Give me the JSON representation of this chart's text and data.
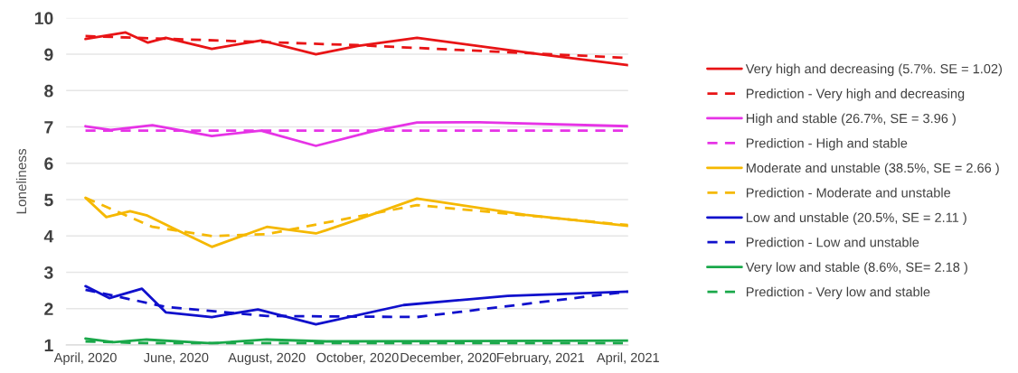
{
  "chart_data": {
    "type": "line",
    "ylabel": "Loneliness",
    "xlim": [
      "2020-03-19",
      "2021-04-01"
    ],
    "ylim": [
      1,
      10
    ],
    "yticks": [
      1,
      2,
      3,
      4,
      5,
      6,
      7,
      8,
      9,
      10
    ],
    "xticks": [
      {
        "value": "2020-04-01",
        "label": "April, 2020"
      },
      {
        "value": "2020-06-01",
        "label": "June, 2020"
      },
      {
        "value": "2020-08-01",
        "label": "August, 2020"
      },
      {
        "value": "2020-10-01",
        "label": "October, 2020"
      },
      {
        "value": "2020-12-01",
        "label": "December, 2020"
      },
      {
        "value": "2021-02-01",
        "label": "February, 2021"
      },
      {
        "value": "2021-04-01",
        "label": "April, 2021"
      }
    ],
    "grid": "y",
    "legend": "right",
    "line_style": "solid",
    "marker": "none",
    "series": [
      {
        "name": "Very high and decreasing (5.7%. SE = 1.02)",
        "color": "#e81416",
        "x": [
          "2020-04-01",
          "2020-04-28",
          "2020-05-13",
          "2020-05-25",
          "2020-06-25",
          "2020-07-28",
          "2020-09-03",
          "2020-10-01",
          "2020-11-10",
          "2021-02-01",
          "2021-04-01"
        ],
        "values": [
          9.42,
          9.6,
          9.32,
          9.45,
          9.15,
          9.38,
          9.0,
          9.23,
          9.45,
          9.0,
          8.7
        ]
      },
      {
        "name": "Prediction - Very high and decreasing",
        "color": "#e81416",
        "line_style": "dashed",
        "x": [
          "2020-04-01",
          "2020-10-01",
          "2021-04-01"
        ],
        "values": [
          9.5,
          9.25,
          8.9
        ]
      },
      {
        "name": "High and stable (26.7%, SE = 3.96 )",
        "color": "#e633e6",
        "x": [
          "2020-04-01",
          "2020-04-18",
          "2020-05-16",
          "2020-06-25",
          "2020-07-28",
          "2020-09-03",
          "2020-10-13",
          "2020-11-10",
          "2020-12-22",
          "2021-04-01"
        ],
        "values": [
          7.02,
          6.92,
          7.05,
          6.75,
          6.9,
          6.48,
          6.9,
          7.12,
          7.13,
          7.02
        ]
      },
      {
        "name": "Prediction - High and stable",
        "color": "#e633e6",
        "line_style": "dashed",
        "x": [
          "2020-04-01",
          "2021-04-01"
        ],
        "values": [
          6.9,
          6.9
        ]
      },
      {
        "name": "Moderate and unstable (38.5%, SE = 2.66 )",
        "color": "#f5b800",
        "x": [
          "2020-04-01",
          "2020-04-15",
          "2020-05-01",
          "2020-05-12",
          "2020-06-25",
          "2020-08-01",
          "2020-09-03",
          "2020-09-10",
          "2020-10-01",
          "2020-11-10",
          "2021-01-22",
          "2021-04-01"
        ],
        "values": [
          5.05,
          4.52,
          4.68,
          4.57,
          3.7,
          4.25,
          4.07,
          4.16,
          4.45,
          5.03,
          4.58,
          4.28
        ]
      },
      {
        "name": "Prediction - Moderate and unstable",
        "color": "#f5b800",
        "line_style": "dashed",
        "x": [
          "2020-04-01",
          "2020-05-16",
          "2020-06-25",
          "2020-08-01",
          "2020-09-10",
          "2020-11-10",
          "2021-04-01"
        ],
        "values": [
          5.05,
          4.25,
          4.0,
          4.05,
          4.37,
          4.85,
          4.3
        ]
      },
      {
        "name": "Low and unstable (20.5%, SE = 2.11 )",
        "color": "#1010cc",
        "x": [
          "2020-04-01",
          "2020-04-17",
          "2020-05-09",
          "2020-05-25",
          "2020-06-25",
          "2020-07-26",
          "2020-09-03",
          "2020-11-01",
          "2021-01-10",
          "2021-04-01"
        ],
        "values": [
          2.62,
          2.29,
          2.55,
          1.9,
          1.77,
          1.98,
          1.57,
          2.1,
          2.35,
          2.47
        ]
      },
      {
        "name": "Prediction - Low and unstable",
        "color": "#1010cc",
        "line_style": "dashed",
        "x": [
          "2020-04-01",
          "2020-05-25",
          "2020-08-01",
          "2020-11-10",
          "2021-04-01"
        ],
        "values": [
          2.52,
          2.05,
          1.8,
          1.77,
          2.47
        ]
      },
      {
        "name": "Very low and stable (8.6%, SE= 2.18 )",
        "color": "#1aa84a",
        "x": [
          "2020-04-01",
          "2020-04-20",
          "2020-05-12",
          "2020-06-25",
          "2020-08-01",
          "2020-09-10",
          "2021-04-01"
        ],
        "values": [
          1.18,
          1.08,
          1.15,
          1.05,
          1.15,
          1.1,
          1.12
        ]
      },
      {
        "name": "Prediction - Very low and stable",
        "color": "#1aa84a",
        "line_style": "dashed",
        "x": [
          "2020-04-01",
          "2020-05-12",
          "2021-04-01"
        ],
        "values": [
          1.1,
          1.05,
          1.05
        ]
      }
    ]
  }
}
